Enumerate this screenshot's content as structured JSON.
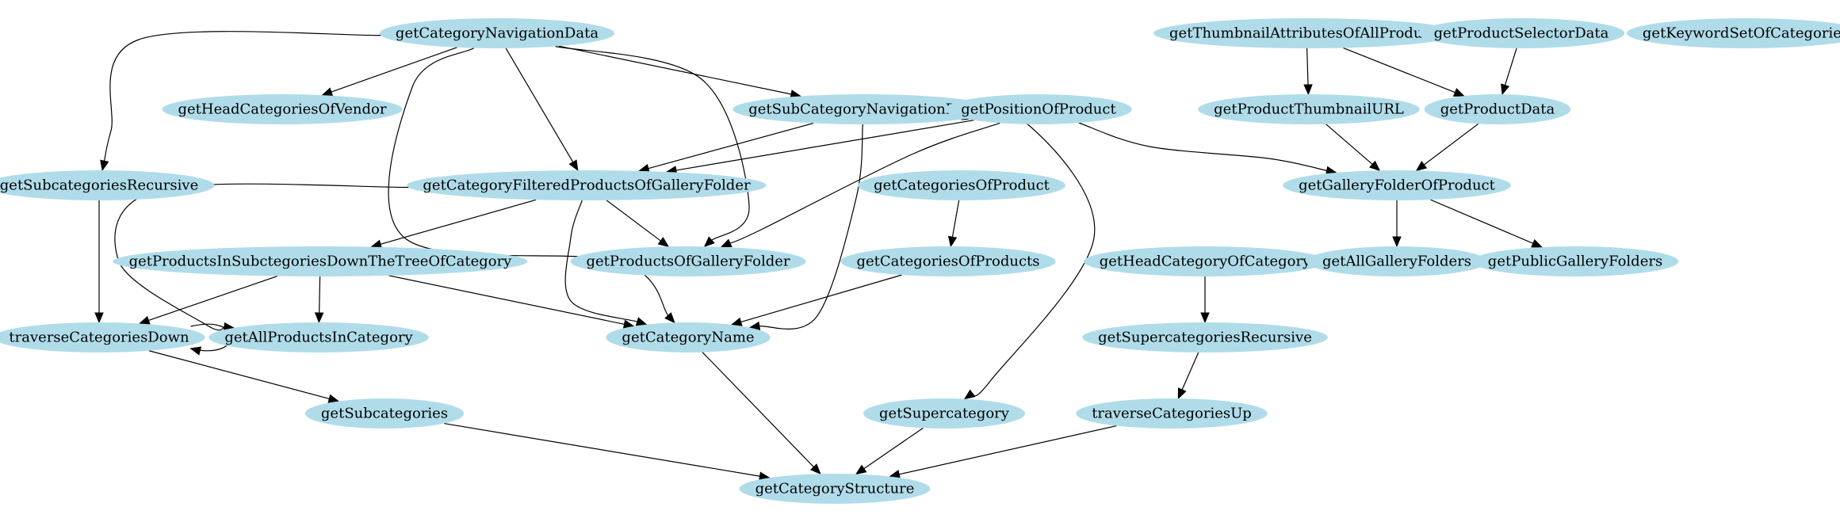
{
  "graph": {
    "nodes": [
      {
        "id": "n1",
        "label": "getCategoryNavigationData"
      },
      {
        "id": "n2",
        "label": "getThumbnailAttributesOfAllProducts"
      },
      {
        "id": "n3",
        "label": "getProductSelectorData"
      },
      {
        "id": "n4",
        "label": "getKeywordSetOfCategories"
      },
      {
        "id": "n5",
        "label": "getHeadCategoriesOfVendor"
      },
      {
        "id": "n6",
        "label": "getSubCategoryNavigationData"
      },
      {
        "id": "n7",
        "label": "getPositionOfProduct"
      },
      {
        "id": "n8",
        "label": "getProductThumbnailURL"
      },
      {
        "id": "n9",
        "label": "getProductData"
      },
      {
        "id": "n10",
        "label": "getSubcategoriesRecursive"
      },
      {
        "id": "n11",
        "label": "getCategoryFilteredProductsOfGalleryFolder"
      },
      {
        "id": "n12",
        "label": "getCategoriesOfProduct"
      },
      {
        "id": "n13",
        "label": "getGalleryFolderOfProduct"
      },
      {
        "id": "n14",
        "label": "getProductsInSubctegoriesDownTheTreeOfCategory"
      },
      {
        "id": "n15",
        "label": "getProductsOfGalleryFolder"
      },
      {
        "id": "n16",
        "label": "getCategoriesOfProducts"
      },
      {
        "id": "n17",
        "label": "getHeadCategoryOfCategory"
      },
      {
        "id": "n18",
        "label": "getAllGalleryFolders"
      },
      {
        "id": "n19",
        "label": "getPublicGalleryFolders"
      },
      {
        "id": "n20",
        "label": "traverseCategoriesDown"
      },
      {
        "id": "n21",
        "label": "getAllProductsInCategory"
      },
      {
        "id": "n22",
        "label": "getCategoryName"
      },
      {
        "id": "n23",
        "label": "getSupercategoriesRecursive"
      },
      {
        "id": "n24",
        "label": "getSubcategories"
      },
      {
        "id": "n25",
        "label": "getSupercategory"
      },
      {
        "id": "n26",
        "label": "traverseCategoriesUp"
      },
      {
        "id": "n27",
        "label": "getCategoryStructure"
      }
    ],
    "edges": [
      {
        "from": "n1",
        "to": "n5"
      },
      {
        "from": "n1",
        "to": "n6"
      },
      {
        "from": "n1",
        "to": "n10"
      },
      {
        "from": "n1",
        "to": "n11"
      },
      {
        "from": "n1",
        "to": "n15"
      },
      {
        "from": "n1",
        "to": "n22"
      },
      {
        "from": "n2",
        "to": "n8"
      },
      {
        "from": "n2",
        "to": "n9"
      },
      {
        "from": "n3",
        "to": "n9"
      },
      {
        "from": "n6",
        "to": "n11"
      },
      {
        "from": "n6",
        "to": "n22"
      },
      {
        "from": "n6",
        "to": "n25"
      },
      {
        "from": "n7",
        "to": "n11"
      },
      {
        "from": "n7",
        "to": "n15"
      },
      {
        "from": "n7",
        "to": "n13"
      },
      {
        "from": "n8",
        "to": "n13"
      },
      {
        "from": "n9",
        "to": "n13"
      },
      {
        "from": "n10",
        "to": "n20"
      },
      {
        "from": "n11",
        "to": "n14"
      },
      {
        "from": "n11",
        "to": "n15"
      },
      {
        "from": "n11",
        "to": "n22"
      },
      {
        "from": "n11",
        "to": "n21"
      },
      {
        "from": "n12",
        "to": "n16"
      },
      {
        "from": "n13",
        "to": "n18"
      },
      {
        "from": "n13",
        "to": "n19"
      },
      {
        "from": "n14",
        "to": "n20"
      },
      {
        "from": "n14",
        "to": "n21"
      },
      {
        "from": "n14",
        "to": "n22"
      },
      {
        "from": "n16",
        "to": "n22"
      },
      {
        "from": "n17",
        "to": "n23"
      },
      {
        "from": "n20",
        "to": "n20"
      },
      {
        "from": "n20",
        "to": "n24"
      },
      {
        "from": "n22",
        "to": "n27"
      },
      {
        "from": "n23",
        "to": "n26"
      },
      {
        "from": "n24",
        "to": "n27"
      },
      {
        "from": "n25",
        "to": "n27"
      },
      {
        "from": "n26",
        "to": "n27"
      }
    ]
  }
}
